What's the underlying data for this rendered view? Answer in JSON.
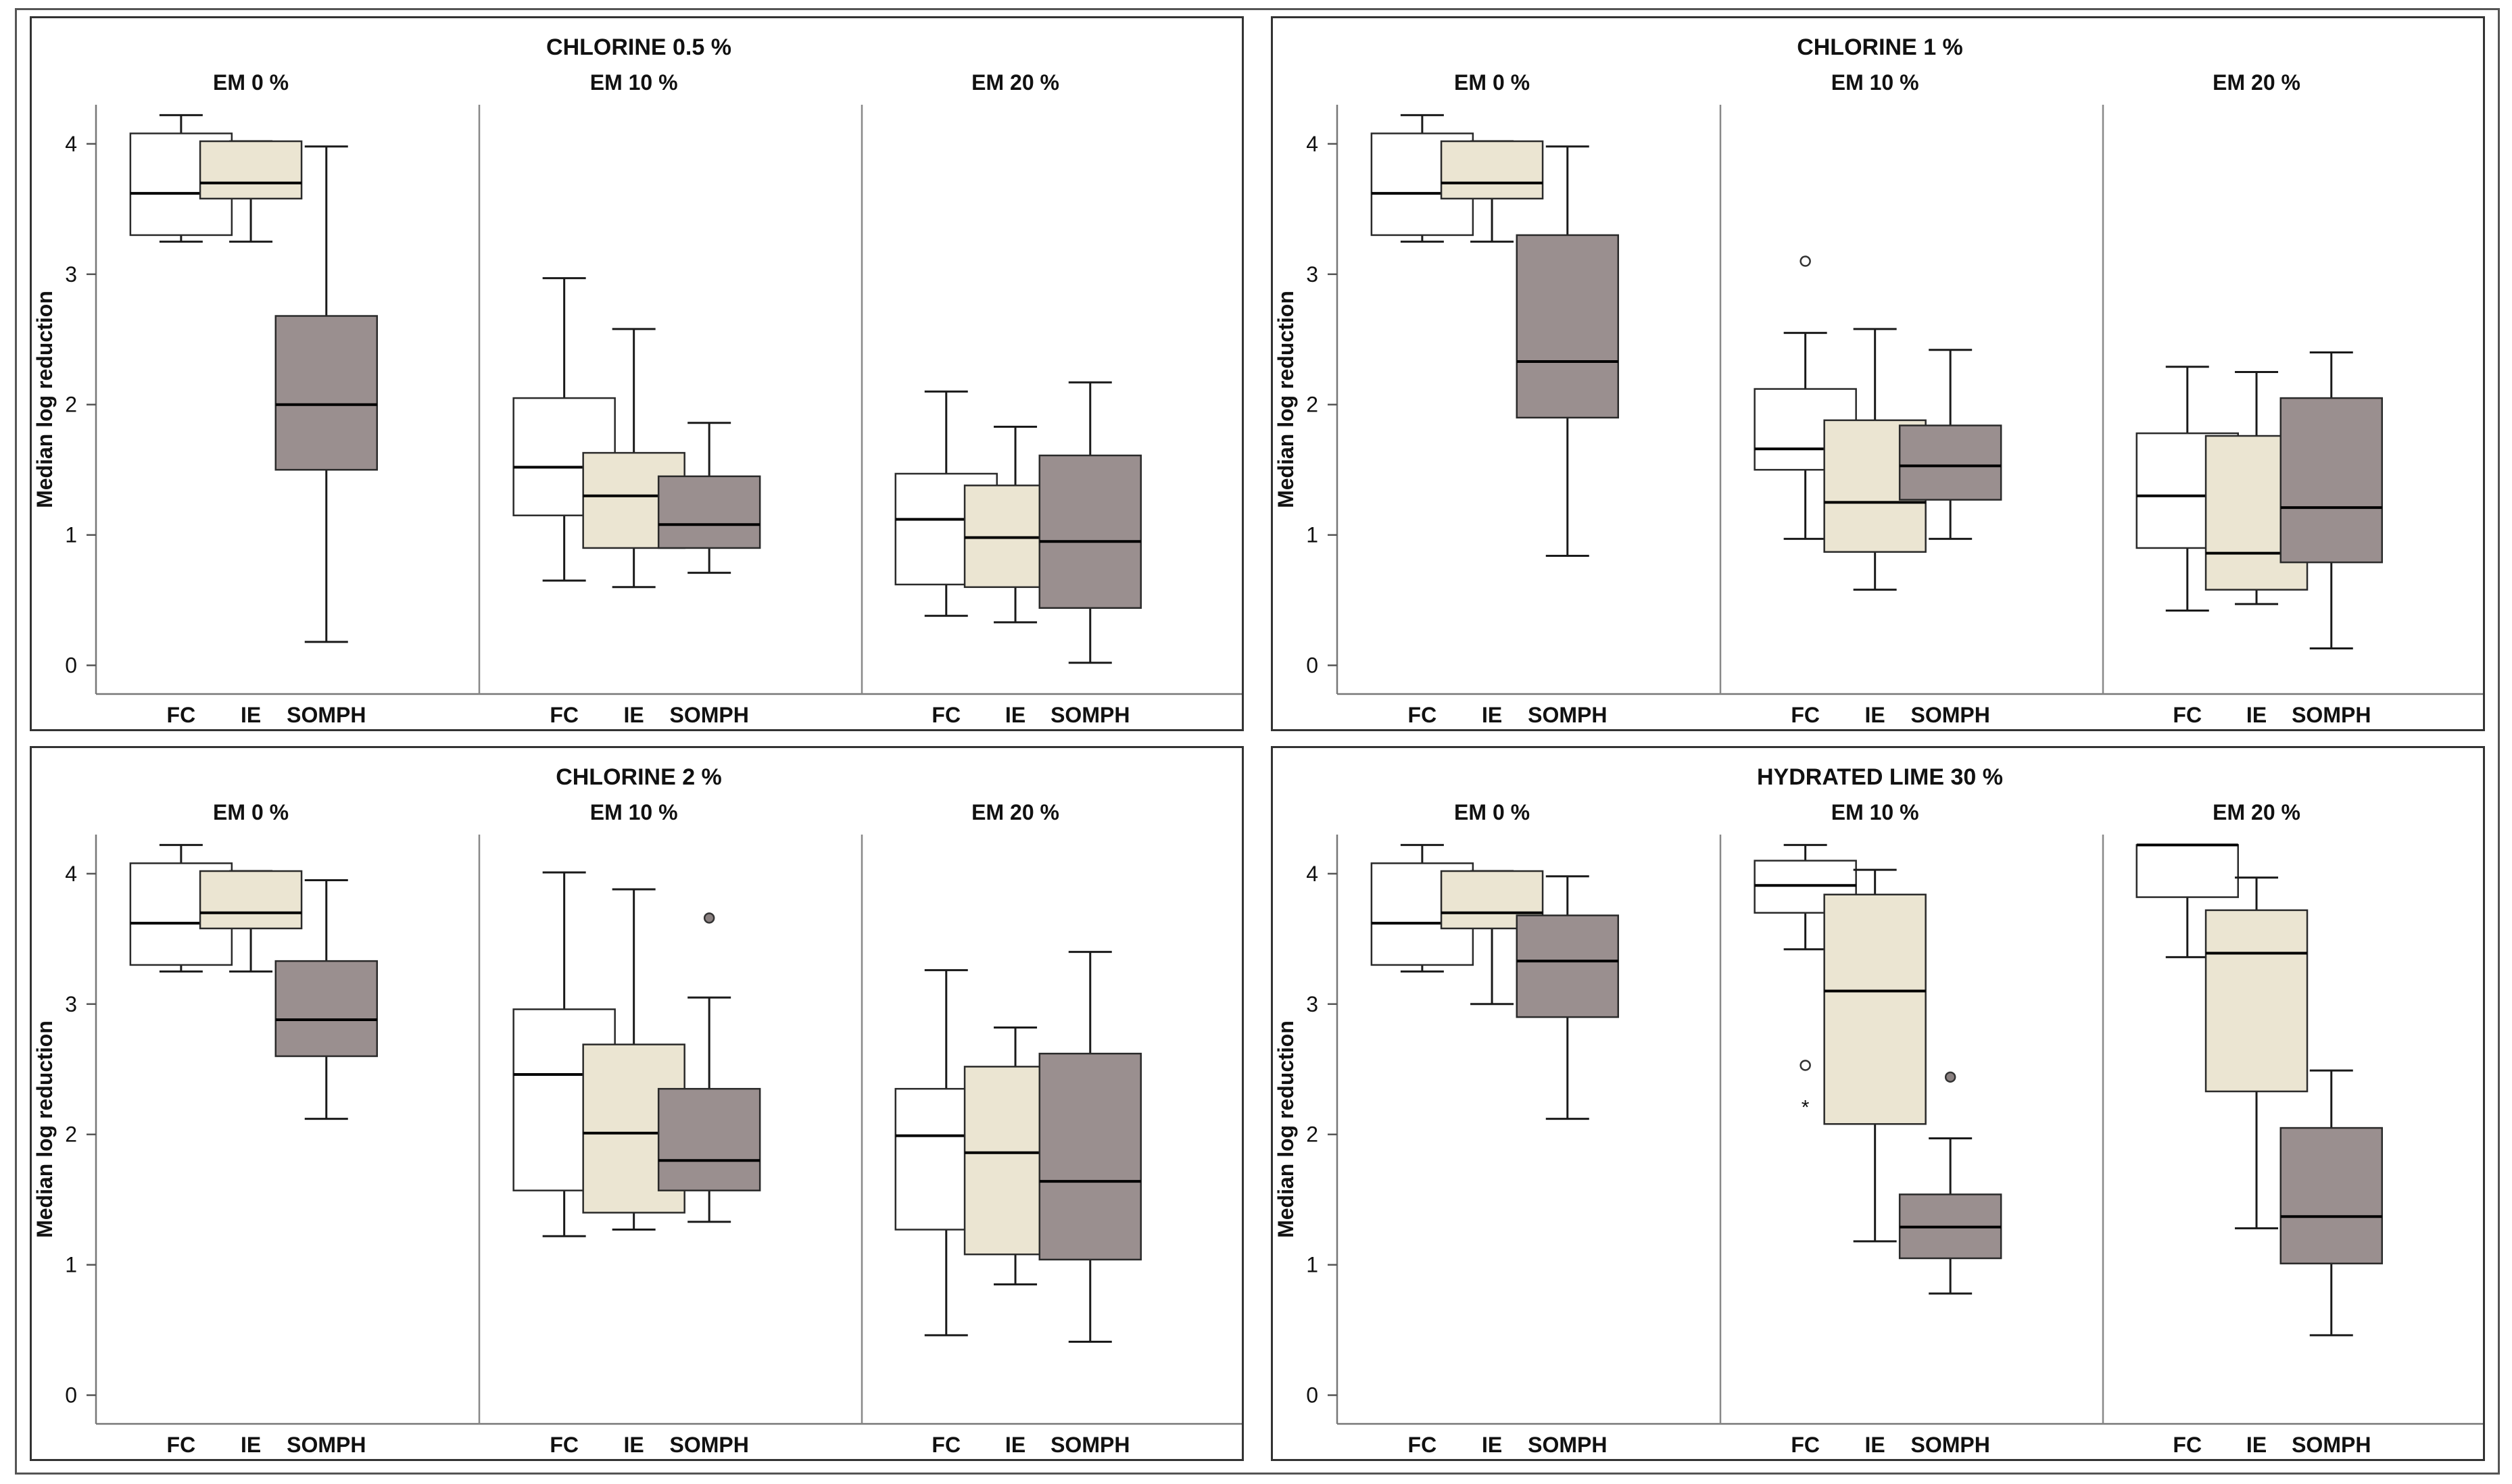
{
  "chart_data": [
    {
      "type": "boxplot",
      "title": "CHLORINE 0.5 %",
      "ylabel": "Median log reduction",
      "ylim": [
        -0.22,
        4.3
      ],
      "yticks": [
        "0",
        "1",
        "2",
        "3",
        "4"
      ],
      "series_colors": {
        "FC": "#ffffff",
        "IE": "#ebe5d2",
        "SOMPH": "#9a8f8f"
      },
      "groups": [
        {
          "label": "EM 0 %",
          "boxes": [
            {
              "name": "FC",
              "min": 3.25,
              "q1": 3.3,
              "median": 3.62,
              "q3": 4.08,
              "max": 4.22,
              "outliers": []
            },
            {
              "name": "IE",
              "min": 3.25,
              "q1": 3.58,
              "median": 3.7,
              "q3": 4.02,
              "max": 4.02,
              "outliers": []
            },
            {
              "name": "SOMPH",
              "min": 0.18,
              "q1": 1.5,
              "median": 2.0,
              "q3": 2.68,
              "max": 3.98,
              "outliers": []
            }
          ]
        },
        {
          "label": "EM 10 %",
          "boxes": [
            {
              "name": "FC",
              "min": 0.65,
              "q1": 1.15,
              "median": 1.52,
              "q3": 2.05,
              "max": 2.97,
              "outliers": []
            },
            {
              "name": "IE",
              "min": 0.6,
              "q1": 0.9,
              "median": 1.3,
              "q3": 1.63,
              "max": 2.58,
              "outliers": []
            },
            {
              "name": "SOMPH",
              "min": 0.71,
              "q1": 0.9,
              "median": 1.08,
              "q3": 1.45,
              "max": 1.86,
              "outliers": []
            }
          ]
        },
        {
          "label": "EM 20 %",
          "boxes": [
            {
              "name": "FC",
              "min": 0.38,
              "q1": 0.62,
              "median": 1.12,
              "q3": 1.47,
              "max": 2.1,
              "outliers": []
            },
            {
              "name": "IE",
              "min": 0.33,
              "q1": 0.6,
              "median": 0.98,
              "q3": 1.38,
              "max": 1.83,
              "outliers": []
            },
            {
              "name": "SOMPH",
              "min": 0.02,
              "q1": 0.44,
              "median": 0.95,
              "q3": 1.61,
              "max": 2.17,
              "outliers": []
            }
          ]
        }
      ]
    },
    {
      "type": "boxplot",
      "title": "CHLORINE 1 %",
      "ylabel": "Median log reduction",
      "ylim": [
        -0.22,
        4.3
      ],
      "yticks": [
        "0",
        "1",
        "2",
        "3",
        "4"
      ],
      "series_colors": {
        "FC": "#ffffff",
        "IE": "#ebe5d2",
        "SOMPH": "#9a8f8f"
      },
      "groups": [
        {
          "label": "EM 0 %",
          "boxes": [
            {
              "name": "FC",
              "min": 3.25,
              "q1": 3.3,
              "median": 3.62,
              "q3": 4.08,
              "max": 4.22,
              "outliers": []
            },
            {
              "name": "IE",
              "min": 3.25,
              "q1": 3.58,
              "median": 3.7,
              "q3": 4.02,
              "max": 4.02,
              "outliers": []
            },
            {
              "name": "SOMPH",
              "min": 0.84,
              "q1": 1.9,
              "median": 2.33,
              "q3": 3.3,
              "max": 3.98,
              "outliers": []
            }
          ]
        },
        {
          "label": "EM 10 %",
          "boxes": [
            {
              "name": "FC",
              "min": 0.97,
              "q1": 1.5,
              "median": 1.66,
              "q3": 2.12,
              "max": 2.55,
              "outliers": [
                {
                  "value": 3.1,
                  "symbol": "circle"
                }
              ]
            },
            {
              "name": "IE",
              "min": 0.58,
              "q1": 0.87,
              "median": 1.25,
              "q3": 1.88,
              "max": 2.58,
              "outliers": []
            },
            {
              "name": "SOMPH",
              "min": 0.97,
              "q1": 1.27,
              "median": 1.53,
              "q3": 1.84,
              "max": 2.42,
              "outliers": []
            }
          ]
        },
        {
          "label": "EM 20 %",
          "boxes": [
            {
              "name": "FC",
              "min": 0.42,
              "q1": 0.9,
              "median": 1.3,
              "q3": 1.78,
              "max": 2.29,
              "outliers": []
            },
            {
              "name": "IE",
              "min": 0.47,
              "q1": 0.58,
              "median": 0.86,
              "q3": 1.76,
              "max": 2.25,
              "outliers": []
            },
            {
              "name": "SOMPH",
              "min": 0.13,
              "q1": 0.79,
              "median": 1.21,
              "q3": 2.05,
              "max": 2.4,
              "outliers": []
            }
          ]
        }
      ]
    },
    {
      "type": "boxplot",
      "title": "CHLORINE 2 %",
      "ylabel": "Median log reduction",
      "ylim": [
        -0.22,
        4.3
      ],
      "yticks": [
        "0",
        "1",
        "2",
        "3",
        "4"
      ],
      "series_colors": {
        "FC": "#ffffff",
        "IE": "#ebe5d2",
        "SOMPH": "#9a8f8f"
      },
      "groups": [
        {
          "label": "EM 0 %",
          "boxes": [
            {
              "name": "FC",
              "min": 3.25,
              "q1": 3.3,
              "median": 3.62,
              "q3": 4.08,
              "max": 4.22,
              "outliers": []
            },
            {
              "name": "IE",
              "min": 3.25,
              "q1": 3.58,
              "median": 3.7,
              "q3": 4.02,
              "max": 4.02,
              "outliers": []
            },
            {
              "name": "SOMPH",
              "min": 2.12,
              "q1": 2.6,
              "median": 2.88,
              "q3": 3.33,
              "max": 3.95,
              "outliers": []
            }
          ]
        },
        {
          "label": "EM 10 %",
          "boxes": [
            {
              "name": "FC",
              "min": 1.22,
              "q1": 1.57,
              "median": 2.46,
              "q3": 2.96,
              "max": 4.01,
              "outliers": []
            },
            {
              "name": "IE",
              "min": 1.27,
              "q1": 1.4,
              "median": 2.01,
              "q3": 2.69,
              "max": 3.88,
              "outliers": []
            },
            {
              "name": "SOMPH",
              "min": 1.33,
              "q1": 1.57,
              "median": 1.8,
              "q3": 2.35,
              "max": 3.05,
              "outliers": [
                {
                  "value": 3.66,
                  "symbol": "filled"
                }
              ]
            }
          ]
        },
        {
          "label": "EM 20 %",
          "boxes": [
            {
              "name": "FC",
              "min": 0.46,
              "q1": 1.27,
              "median": 1.99,
              "q3": 2.35,
              "max": 3.26,
              "outliers": []
            },
            {
              "name": "IE",
              "min": 0.85,
              "q1": 1.08,
              "median": 1.86,
              "q3": 2.52,
              "max": 2.82,
              "outliers": []
            },
            {
              "name": "SOMPH",
              "min": 0.41,
              "q1": 1.04,
              "median": 1.64,
              "q3": 2.62,
              "max": 3.4,
              "outliers": []
            }
          ]
        }
      ]
    },
    {
      "type": "boxplot",
      "title": "HYDRATED LIME 30 %",
      "ylabel": "Median log reduction",
      "ylim": [
        -0.22,
        4.3
      ],
      "yticks": [
        "0",
        "1",
        "2",
        "3",
        "4"
      ],
      "series_colors": {
        "FC": "#ffffff",
        "IE": "#ebe5d2",
        "SOMPH": "#9a8f8f"
      },
      "groups": [
        {
          "label": "EM 0 %",
          "boxes": [
            {
              "name": "FC",
              "min": 3.25,
              "q1": 3.3,
              "median": 3.62,
              "q3": 4.08,
              "max": 4.22,
              "outliers": []
            },
            {
              "name": "IE",
              "min": 3.0,
              "q1": 3.58,
              "median": 3.7,
              "q3": 4.02,
              "max": 4.02,
              "outliers": []
            },
            {
              "name": "SOMPH",
              "min": 2.12,
              "q1": 2.9,
              "median": 3.33,
              "q3": 3.68,
              "max": 3.98,
              "outliers": []
            }
          ]
        },
        {
          "label": "EM 10 %",
          "boxes": [
            {
              "name": "FC",
              "min": 3.42,
              "q1": 3.7,
              "median": 3.91,
              "q3": 4.1,
              "max": 4.22,
              "outliers": [
                {
                  "value": 2.53,
                  "symbol": "circle"
                },
                {
                  "value": 2.23,
                  "symbol": "star"
                }
              ]
            },
            {
              "name": "IE",
              "min": 1.18,
              "q1": 2.08,
              "median": 3.1,
              "q3": 3.84,
              "max": 4.03,
              "outliers": []
            },
            {
              "name": "SOMPH",
              "min": 0.78,
              "q1": 1.05,
              "median": 1.29,
              "q3": 1.54,
              "max": 1.97,
              "outliers": [
                {
                  "value": 2.44,
                  "symbol": "filled"
                }
              ]
            }
          ]
        },
        {
          "label": "EM 20 %",
          "boxes": [
            {
              "name": "FC",
              "min": 3.36,
              "q1": 3.82,
              "median": 4.22,
              "q3": 4.22,
              "max": 4.22,
              "outliers": []
            },
            {
              "name": "IE",
              "min": 1.28,
              "q1": 2.33,
              "median": 3.39,
              "q3": 3.72,
              "max": 3.97,
              "outliers": []
            },
            {
              "name": "SOMPH",
              "min": 0.46,
              "q1": 1.01,
              "median": 1.37,
              "q3": 2.05,
              "max": 2.49,
              "outliers": []
            }
          ]
        }
      ]
    }
  ]
}
